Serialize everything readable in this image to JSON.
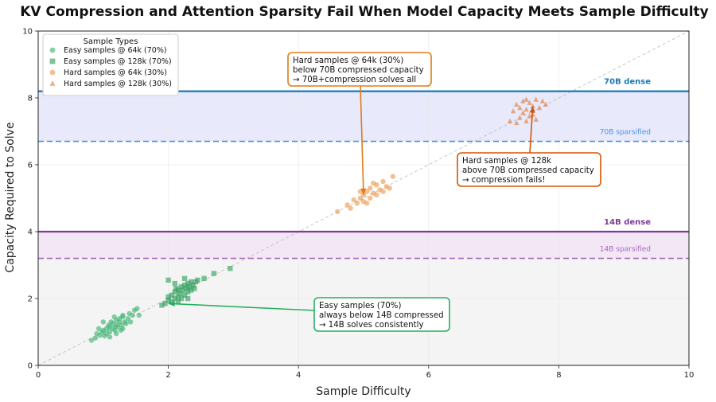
{
  "chart_data": {
    "type": "scatter",
    "title": "KV Compression and Attention Sparsity Fail When Model Capacity Meets Sample Difficulty",
    "xlabel": "Sample Difficulty",
    "ylabel": "Capacity Required to Solve",
    "xlim": [
      0,
      10
    ],
    "ylim": [
      0,
      10
    ],
    "xticks": [
      "0",
      "2",
      "4",
      "6",
      "8",
      "10"
    ],
    "yticks": [
      "0",
      "2",
      "4",
      "6",
      "8",
      "10"
    ],
    "grid": true,
    "diagonal": {
      "from": [
        0,
        0
      ],
      "to": [
        10,
        10
      ],
      "style": "dashed"
    },
    "legend": {
      "title": "Sample Types",
      "position": "top-left",
      "entries": [
        {
          "label": "Easy samples @ 64k (70%)",
          "color": "#3cb371",
          "marker": "circle"
        },
        {
          "label": "Easy samples @ 128k (70%)",
          "color": "#2e9e5b",
          "marker": "square"
        },
        {
          "label": "Hard samples @ 64k (30%)",
          "color": "#ee9a4d",
          "marker": "circle"
        },
        {
          "label": "Hard samples @ 128k (30%)",
          "color": "#e07b39",
          "marker": "triangle"
        }
      ]
    },
    "thresholds": [
      {
        "label": "70B dense",
        "y": 8.2,
        "color": "#1f77b4",
        "style": "solid",
        "bold": true
      },
      {
        "label": "70B sparsified",
        "y": 6.7,
        "color": "#4a90d9",
        "style": "dashed",
        "bold": false
      },
      {
        "label": "14B dense",
        "y": 4.0,
        "color": "#7d3c98",
        "style": "solid",
        "bold": true
      },
      {
        "label": "14B sparsified",
        "y": 3.2,
        "color": "#a569bd",
        "style": "dashed",
        "bold": false
      }
    ],
    "bands": [
      {
        "from": 6.7,
        "to": 8.2,
        "color": "#e8eafc"
      },
      {
        "from": 3.2,
        "to": 4.0,
        "color": "#f3e6f5"
      },
      {
        "from": 0,
        "to": 3.2,
        "color": "#f4f4f4"
      }
    ],
    "series": [
      {
        "name": "Easy samples @ 64k (70%)",
        "marker": "circle",
        "color": "#3cb371",
        "x": [
          0.82,
          0.88,
          0.9,
          0.95,
          0.98,
          1.0,
          1.02,
          1.05,
          1.05,
          1.08,
          1.1,
          1.1,
          1.12,
          1.15,
          1.15,
          1.18,
          1.2,
          1.2,
          1.22,
          1.25,
          1.25,
          1.28,
          1.3,
          1.3,
          1.33,
          1.35,
          1.38,
          1.4,
          1.42,
          1.45,
          1.48,
          1.52,
          1.55,
          1.1,
          1.0,
          1.2,
          1.3,
          0.93,
          1.17,
          1.27
        ],
        "y": [
          0.75,
          0.82,
          0.95,
          0.9,
          1.0,
          1.05,
          0.88,
          1.1,
          0.95,
          1.2,
          1.0,
          1.15,
          1.3,
          1.1,
          1.25,
          1.05,
          1.2,
          1.35,
          1.15,
          1.3,
          1.4,
          1.2,
          1.1,
          1.45,
          1.3,
          1.25,
          1.4,
          1.55,
          1.3,
          1.5,
          1.65,
          1.7,
          1.5,
          0.85,
          1.3,
          0.95,
          1.5,
          1.1,
          1.45,
          1.05
        ]
      },
      {
        "name": "Easy samples @ 128k (70%)",
        "marker": "square",
        "color": "#2e9e5b",
        "x": [
          1.9,
          1.95,
          2.0,
          2.0,
          2.05,
          2.05,
          2.1,
          2.1,
          2.12,
          2.15,
          2.15,
          2.18,
          2.2,
          2.2,
          2.22,
          2.25,
          2.25,
          2.28,
          2.3,
          2.3,
          2.32,
          2.35,
          2.35,
          2.38,
          2.4,
          2.42,
          2.45,
          2.55,
          2.7,
          2.95,
          2.0,
          2.15,
          2.25,
          2.3,
          2.1
        ],
        "y": [
          1.8,
          1.85,
          1.95,
          2.05,
          1.9,
          2.1,
          2.0,
          2.2,
          2.3,
          2.05,
          2.25,
          2.15,
          2.0,
          2.35,
          2.25,
          2.1,
          2.4,
          2.3,
          2.2,
          2.45,
          2.35,
          2.25,
          2.5,
          2.4,
          2.3,
          2.5,
          2.55,
          2.6,
          2.75,
          2.9,
          2.55,
          1.9,
          2.6,
          2.0,
          2.45
        ]
      },
      {
        "name": "Hard samples @ 64k (30%)",
        "marker": "circle",
        "color": "#ee9a4d",
        "x": [
          4.6,
          4.75,
          4.8,
          4.85,
          4.9,
          4.95,
          5.0,
          5.0,
          5.05,
          5.1,
          5.1,
          5.15,
          5.2,
          5.2,
          5.25,
          5.3,
          5.3,
          5.35,
          5.4,
          5.45,
          4.95,
          5.05,
          5.15
        ],
        "y": [
          4.6,
          4.8,
          4.7,
          4.95,
          4.85,
          5.0,
          4.9,
          5.1,
          5.2,
          5.0,
          5.3,
          5.15,
          5.1,
          5.4,
          5.25,
          5.2,
          5.5,
          5.35,
          5.3,
          5.65,
          5.2,
          4.85,
          5.45
        ]
      },
      {
        "name": "Hard samples @ 128k (30%)",
        "marker": "triangle",
        "color": "#e07b39",
        "x": [
          7.25,
          7.3,
          7.35,
          7.4,
          7.4,
          7.45,
          7.5,
          7.5,
          7.55,
          7.6,
          7.6,
          7.65,
          7.7,
          7.75,
          7.8,
          7.35,
          7.45,
          7.55,
          7.65,
          7.5
        ],
        "y": [
          7.3,
          7.6,
          7.8,
          7.4,
          7.7,
          7.9,
          7.3,
          7.65,
          7.85,
          7.5,
          7.75,
          7.95,
          7.7,
          7.9,
          7.8,
          7.25,
          7.55,
          7.45,
          7.35,
          7.95
        ]
      }
    ],
    "annotations": [
      {
        "lines": [
          "Hard samples @ 64k (30%)",
          "below 70B compressed capacity",
          "→ 70B+compression solves all"
        ],
        "point": [
          5.0,
          5.1
        ],
        "border": "#e07b1a"
      },
      {
        "lines": [
          "Hard samples @ 128k",
          "above 70B compressed capacity",
          "→ compression fails!"
        ],
        "point": [
          7.6,
          7.75
        ],
        "border": "#d35400"
      },
      {
        "lines": [
          "Easy samples (70%)",
          "always below 14B compressed",
          "→ 14B solves consistently"
        ],
        "point": [
          2.0,
          1.85
        ],
        "border": "#27ae60"
      }
    ]
  }
}
